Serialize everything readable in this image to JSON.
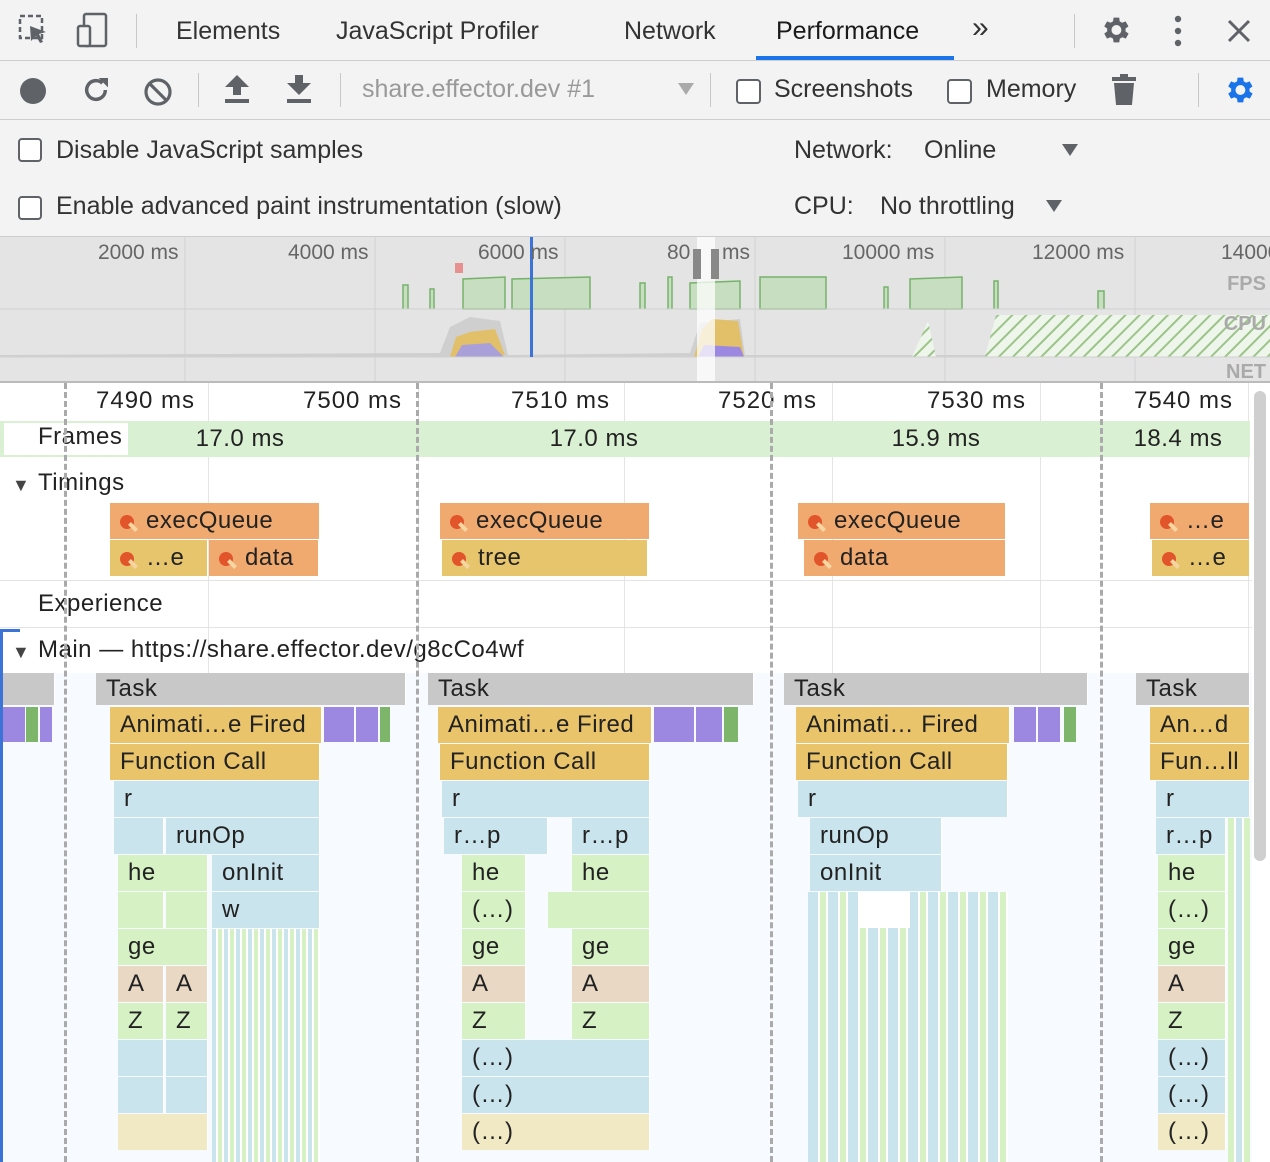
{
  "tabs": {
    "elements": "Elements",
    "js_profiler": "JavaScript Profiler",
    "network": "Network",
    "performance": "Performance",
    "more": "»"
  },
  "toolbar": {
    "profile_select": "share.effector.dev #1",
    "screenshots_label": "Screenshots",
    "memory_label": "Memory"
  },
  "settings": {
    "disable_js_samples": "Disable JavaScript samples",
    "advanced_paint": "Enable advanced paint instrumentation (slow)",
    "network_label": "Network:",
    "network_value": "Online",
    "cpu_label": "CPU:",
    "cpu_value": "No throttling"
  },
  "overview": {
    "ticks": [
      "2000 ms",
      "4000 ms",
      "6000 ms",
      "80",
      "ms",
      "10000 ms",
      "12000 ms",
      "14000"
    ],
    "fps_label": "FPS",
    "cpu_label": "CPU",
    "net_label": "NET"
  },
  "ruler": {
    "ticks": [
      "7490 ms",
      "7500 ms",
      "7510 ms",
      "7520 ms",
      "7530 ms",
      "7540 ms"
    ]
  },
  "frames": {
    "label": "Frames",
    "durations": [
      "17.0 ms",
      "17.0 ms",
      "15.9 ms",
      "18.4 ms"
    ]
  },
  "timings": {
    "label": "Timings",
    "marks": [
      "execQueue",
      "…e",
      "data",
      "execQueue",
      "tree",
      "execQueue",
      "data",
      "…e",
      "…e"
    ]
  },
  "experience": {
    "label": "Experience"
  },
  "main": {
    "label": "Main — https://share.effector.dev/g8cCo4wf",
    "tasks": [
      "Task",
      "Task",
      "Task",
      "Task"
    ],
    "anim": [
      "Animati…e Fired",
      "Animati…e Fired",
      "Animati… Fired",
      "An…d"
    ],
    "func": [
      "Function Call",
      "Function Call",
      "Function Call",
      "Fun…ll"
    ],
    "col1": [
      "r",
      "runOp",
      "he",
      "onInit",
      "w",
      "ge",
      "A",
      "A",
      "Z",
      "Z"
    ],
    "col2": [
      "r",
      "r…p",
      "r…p",
      "he",
      "he",
      "(…)",
      "ge",
      "ge",
      "A",
      "A",
      "Z",
      "Z",
      "(…)",
      "(…)",
      "(…)"
    ],
    "col3": [
      "r",
      "runOp",
      "onInit"
    ],
    "col4": [
      "r",
      "r…p",
      "he",
      "(…)",
      "ge",
      "A",
      "Z",
      "(…)",
      "(…)",
      "(…)"
    ]
  },
  "colors": {
    "accent": "#1a73e8",
    "timing_orange": "#f0aa70",
    "timing_yellow": "#e7c56d",
    "task_gray": "#c8c8c8",
    "frame_green": "#d9f0d3",
    "purple": "#9c88e0"
  },
  "icons": [
    "inspect-icon",
    "device-toolbar-icon",
    "gear-icon",
    "kebab-menu-icon",
    "close-icon",
    "record-icon",
    "reload-icon",
    "clear-icon",
    "upload-icon",
    "download-icon",
    "trash-icon",
    "capture-settings-icon"
  ]
}
